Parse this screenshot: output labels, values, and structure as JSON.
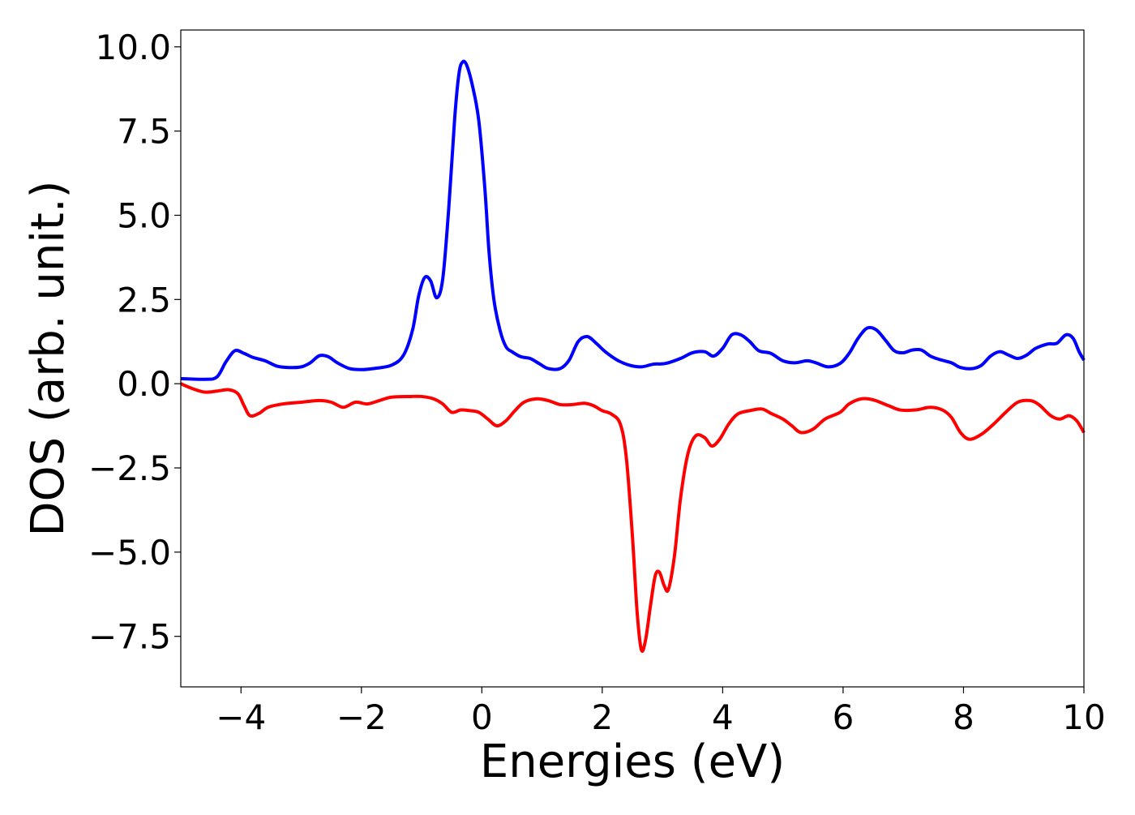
{
  "chart_data": {
    "type": "line",
    "title": "",
    "xlabel": "Energies (eV)",
    "ylabel": "DOS (arb. unit.)",
    "xlim": [
      -5,
      10
    ],
    "ylim": [
      -9,
      10.5
    ],
    "grid": false,
    "legend": "none",
    "x_ticks": [
      -4,
      -2,
      0,
      2,
      4,
      6,
      8,
      10
    ],
    "x_tick_labels": [
      "−4",
      "−2",
      "0",
      "2",
      "4",
      "6",
      "8",
      "10"
    ],
    "y_ticks": [
      10.0,
      7.5,
      5.0,
      2.5,
      0.0,
      -2.5,
      -5.0,
      -7.5
    ],
    "y_tick_labels": [
      "10.0",
      "7.5",
      "5.0",
      "2.5",
      "0.0",
      "−2.5",
      "−5.0",
      "−7.5"
    ],
    "series": [
      {
        "color": "#0000ff",
        "points": [
          [
            -5.0,
            0.15
          ],
          [
            -4.6,
            0.13
          ],
          [
            -4.4,
            0.2
          ],
          [
            -4.25,
            0.65
          ],
          [
            -4.1,
            0.98
          ],
          [
            -3.95,
            0.9
          ],
          [
            -3.8,
            0.78
          ],
          [
            -3.6,
            0.68
          ],
          [
            -3.4,
            0.52
          ],
          [
            -3.2,
            0.48
          ],
          [
            -3.0,
            0.5
          ],
          [
            -2.85,
            0.62
          ],
          [
            -2.7,
            0.83
          ],
          [
            -2.55,
            0.8
          ],
          [
            -2.4,
            0.62
          ],
          [
            -2.2,
            0.45
          ],
          [
            -2.0,
            0.42
          ],
          [
            -1.8,
            0.45
          ],
          [
            -1.5,
            0.55
          ],
          [
            -1.3,
            0.85
          ],
          [
            -1.15,
            1.6
          ],
          [
            -1.05,
            2.6
          ],
          [
            -0.95,
            3.15
          ],
          [
            -0.85,
            3.05
          ],
          [
            -0.75,
            2.55
          ],
          [
            -0.65,
            3.1
          ],
          [
            -0.55,
            5.2
          ],
          [
            -0.45,
            7.9
          ],
          [
            -0.38,
            9.2
          ],
          [
            -0.32,
            9.55
          ],
          [
            -0.25,
            9.45
          ],
          [
            -0.15,
            8.8
          ],
          [
            -0.05,
            7.8
          ],
          [
            0.05,
            5.8
          ],
          [
            0.12,
            3.9
          ],
          [
            0.2,
            2.5
          ],
          [
            0.3,
            1.6
          ],
          [
            0.4,
            1.1
          ],
          [
            0.5,
            0.95
          ],
          [
            0.65,
            0.8
          ],
          [
            0.8,
            0.75
          ],
          [
            0.95,
            0.6
          ],
          [
            1.1,
            0.45
          ],
          [
            1.3,
            0.45
          ],
          [
            1.45,
            0.7
          ],
          [
            1.6,
            1.25
          ],
          [
            1.75,
            1.4
          ],
          [
            1.9,
            1.2
          ],
          [
            2.05,
            0.95
          ],
          [
            2.25,
            0.7
          ],
          [
            2.45,
            0.55
          ],
          [
            2.65,
            0.5
          ],
          [
            2.85,
            0.58
          ],
          [
            3.05,
            0.6
          ],
          [
            3.3,
            0.75
          ],
          [
            3.5,
            0.92
          ],
          [
            3.7,
            0.95
          ],
          [
            3.85,
            0.82
          ],
          [
            4.0,
            1.05
          ],
          [
            4.15,
            1.45
          ],
          [
            4.3,
            1.45
          ],
          [
            4.45,
            1.25
          ],
          [
            4.6,
            0.98
          ],
          [
            4.8,
            0.9
          ],
          [
            5.0,
            0.68
          ],
          [
            5.2,
            0.62
          ],
          [
            5.4,
            0.68
          ],
          [
            5.55,
            0.62
          ],
          [
            5.75,
            0.5
          ],
          [
            5.95,
            0.6
          ],
          [
            6.1,
            0.9
          ],
          [
            6.25,
            1.35
          ],
          [
            6.4,
            1.65
          ],
          [
            6.55,
            1.6
          ],
          [
            6.7,
            1.3
          ],
          [
            6.85,
            0.98
          ],
          [
            7.0,
            0.92
          ],
          [
            7.15,
            1.0
          ],
          [
            7.3,
            1.0
          ],
          [
            7.45,
            0.82
          ],
          [
            7.6,
            0.72
          ],
          [
            7.8,
            0.62
          ],
          [
            7.95,
            0.48
          ],
          [
            8.15,
            0.45
          ],
          [
            8.3,
            0.55
          ],
          [
            8.45,
            0.82
          ],
          [
            8.6,
            0.95
          ],
          [
            8.75,
            0.85
          ],
          [
            8.9,
            0.75
          ],
          [
            9.05,
            0.85
          ],
          [
            9.2,
            1.05
          ],
          [
            9.4,
            1.18
          ],
          [
            9.55,
            1.2
          ],
          [
            9.7,
            1.45
          ],
          [
            9.82,
            1.35
          ],
          [
            9.92,
            0.95
          ],
          [
            10.0,
            0.7
          ]
        ]
      },
      {
        "color": "#ff0000",
        "points": [
          [
            -5.0,
            0.0
          ],
          [
            -4.8,
            -0.15
          ],
          [
            -4.6,
            -0.25
          ],
          [
            -4.4,
            -0.22
          ],
          [
            -4.2,
            -0.18
          ],
          [
            -4.05,
            -0.3
          ],
          [
            -3.95,
            -0.65
          ],
          [
            -3.85,
            -0.95
          ],
          [
            -3.7,
            -0.88
          ],
          [
            -3.55,
            -0.7
          ],
          [
            -3.3,
            -0.6
          ],
          [
            -3.0,
            -0.55
          ],
          [
            -2.7,
            -0.5
          ],
          [
            -2.5,
            -0.55
          ],
          [
            -2.3,
            -0.7
          ],
          [
            -2.1,
            -0.55
          ],
          [
            -1.9,
            -0.6
          ],
          [
            -1.7,
            -0.5
          ],
          [
            -1.5,
            -0.4
          ],
          [
            -1.2,
            -0.38
          ],
          [
            -1.0,
            -0.38
          ],
          [
            -0.8,
            -0.45
          ],
          [
            -0.65,
            -0.6
          ],
          [
            -0.5,
            -0.85
          ],
          [
            -0.35,
            -0.78
          ],
          [
            -0.2,
            -0.8
          ],
          [
            -0.05,
            -0.85
          ],
          [
            0.1,
            -1.05
          ],
          [
            0.25,
            -1.25
          ],
          [
            0.4,
            -1.1
          ],
          [
            0.55,
            -0.8
          ],
          [
            0.7,
            -0.55
          ],
          [
            0.9,
            -0.45
          ],
          [
            1.1,
            -0.5
          ],
          [
            1.3,
            -0.62
          ],
          [
            1.5,
            -0.62
          ],
          [
            1.7,
            -0.58
          ],
          [
            1.85,
            -0.65
          ],
          [
            2.0,
            -0.8
          ],
          [
            2.15,
            -0.9
          ],
          [
            2.3,
            -1.2
          ],
          [
            2.4,
            -2.2
          ],
          [
            2.5,
            -4.5
          ],
          [
            2.58,
            -6.8
          ],
          [
            2.65,
            -7.9
          ],
          [
            2.72,
            -7.6
          ],
          [
            2.8,
            -6.6
          ],
          [
            2.88,
            -5.7
          ],
          [
            2.95,
            -5.6
          ],
          [
            3.03,
            -6.0
          ],
          [
            3.1,
            -6.1
          ],
          [
            3.2,
            -5.1
          ],
          [
            3.3,
            -3.4
          ],
          [
            3.42,
            -2.1
          ],
          [
            3.55,
            -1.55
          ],
          [
            3.7,
            -1.6
          ],
          [
            3.82,
            -1.85
          ],
          [
            3.95,
            -1.65
          ],
          [
            4.1,
            -1.2
          ],
          [
            4.25,
            -0.9
          ],
          [
            4.45,
            -0.8
          ],
          [
            4.65,
            -0.75
          ],
          [
            4.8,
            -0.88
          ],
          [
            5.0,
            -1.05
          ],
          [
            5.15,
            -1.25
          ],
          [
            5.3,
            -1.45
          ],
          [
            5.5,
            -1.35
          ],
          [
            5.7,
            -1.05
          ],
          [
            5.95,
            -0.85
          ],
          [
            6.1,
            -0.6
          ],
          [
            6.3,
            -0.45
          ],
          [
            6.5,
            -0.48
          ],
          [
            6.75,
            -0.65
          ],
          [
            6.95,
            -0.78
          ],
          [
            7.2,
            -0.78
          ],
          [
            7.45,
            -0.7
          ],
          [
            7.65,
            -0.78
          ],
          [
            7.8,
            -1.0
          ],
          [
            7.95,
            -1.45
          ],
          [
            8.1,
            -1.65
          ],
          [
            8.3,
            -1.5
          ],
          [
            8.5,
            -1.2
          ],
          [
            8.7,
            -0.85
          ],
          [
            8.9,
            -0.55
          ],
          [
            9.1,
            -0.5
          ],
          [
            9.25,
            -0.62
          ],
          [
            9.45,
            -0.95
          ],
          [
            9.6,
            -1.05
          ],
          [
            9.75,
            -0.95
          ],
          [
            9.88,
            -1.1
          ],
          [
            10.0,
            -1.45
          ]
        ]
      }
    ]
  }
}
